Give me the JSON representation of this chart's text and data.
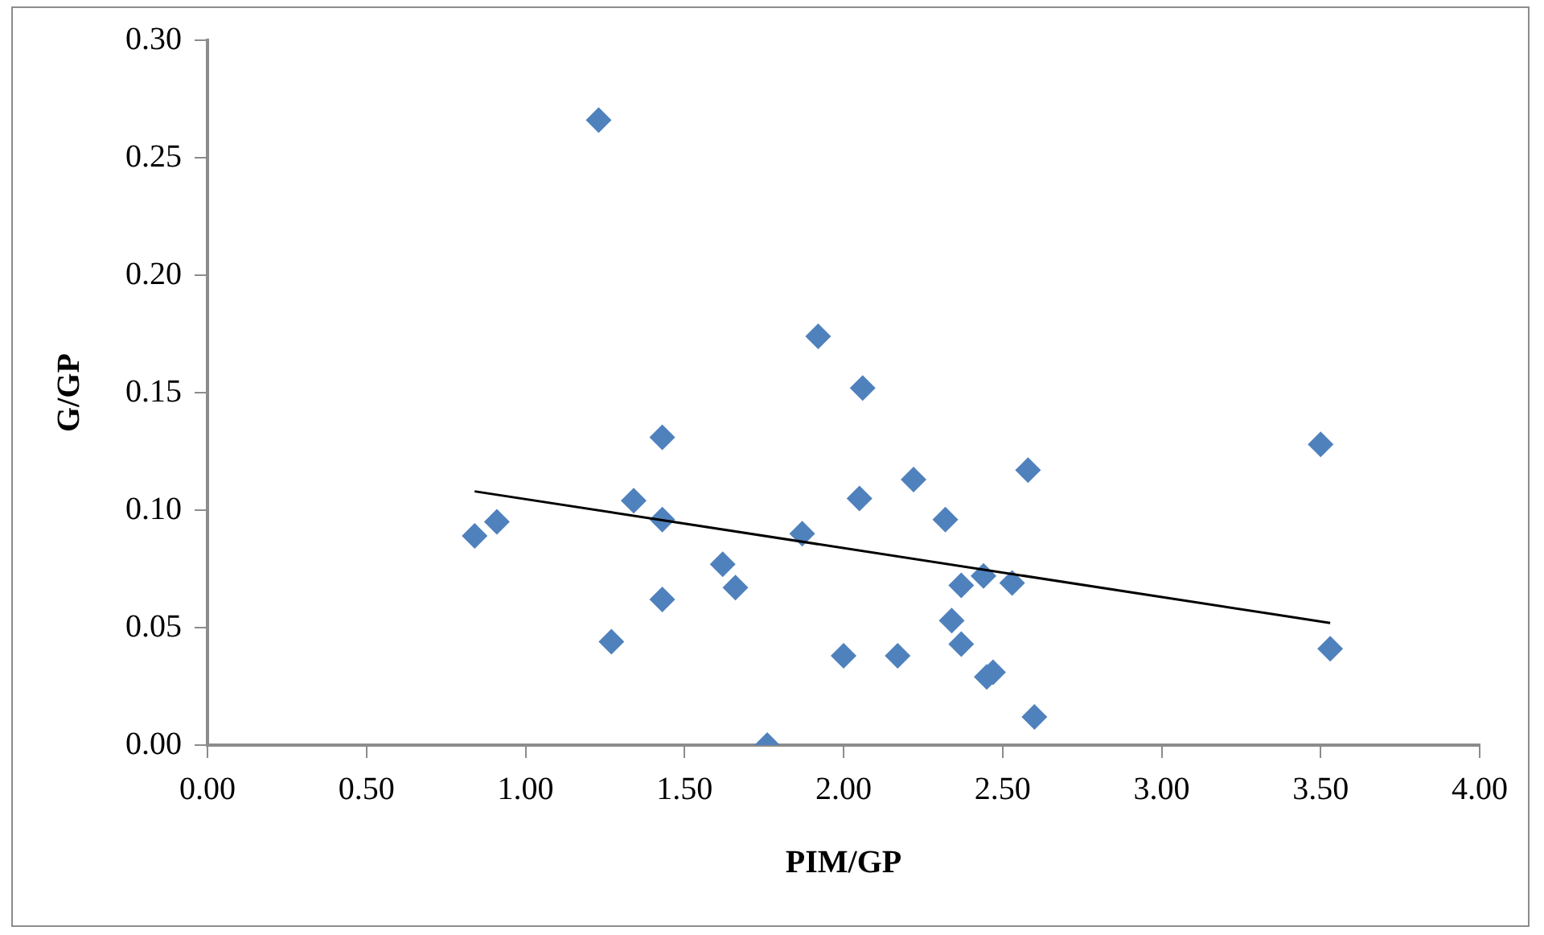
{
  "chart_data": {
    "type": "scatter",
    "xlabel": "PIM/GP",
    "ylabel": "G/GP",
    "xlim": [
      0,
      4
    ],
    "ylim": [
      0,
      0.3
    ],
    "xticks": [
      {
        "value": 0,
        "label": "0.00"
      },
      {
        "value": 0.5,
        "label": "0.50"
      },
      {
        "value": 1,
        "label": "1.00"
      },
      {
        "value": 1.5,
        "label": "1.50"
      },
      {
        "value": 2,
        "label": "2.00"
      },
      {
        "value": 2.5,
        "label": "2.50"
      },
      {
        "value": 3,
        "label": "3.00"
      },
      {
        "value": 3.5,
        "label": "3.50"
      },
      {
        "value": 4,
        "label": "4.00"
      }
    ],
    "yticks": [
      {
        "value": 0,
        "label": "0.00"
      },
      {
        "value": 0.05,
        "label": "0.05"
      },
      {
        "value": 0.1,
        "label": "0.10"
      },
      {
        "value": 0.15,
        "label": "0.15"
      },
      {
        "value": 0.2,
        "label": "0.20"
      },
      {
        "value": 0.25,
        "label": "0.25"
      },
      {
        "value": 0.3,
        "label": "0.30"
      }
    ],
    "grid": false,
    "legend": false,
    "series": [
      {
        "type": "scatter",
        "color": "#4f81bd",
        "marker": "diamond",
        "x": [
          1.23,
          0.84,
          0.91,
          1.34,
          1.43,
          1.43,
          1.43,
          1.27,
          1.62,
          1.66,
          1.76,
          1.87,
          1.92,
          2.06,
          2.05,
          2.0,
          2.17,
          2.22,
          2.32,
          2.34,
          2.37,
          2.37,
          2.44,
          2.53,
          2.58,
          2.45,
          2.47,
          2.6,
          3.5,
          3.53
        ],
        "values": [
          0.266,
          0.089,
          0.095,
          0.104,
          0.131,
          0.096,
          0.062,
          0.044,
          0.077,
          0.067,
          0.0,
          0.09,
          0.174,
          0.152,
          0.105,
          0.038,
          0.038,
          0.113,
          0.096,
          0.053,
          0.068,
          0.043,
          0.072,
          0.069,
          0.117,
          0.029,
          0.031,
          0.012,
          0.128,
          0.041
        ]
      },
      {
        "type": "line",
        "color": "#000000",
        "marker": "none",
        "line_style": "solid",
        "x": [
          0.84,
          3.53
        ],
        "values": [
          0.108,
          0.052
        ]
      }
    ]
  }
}
